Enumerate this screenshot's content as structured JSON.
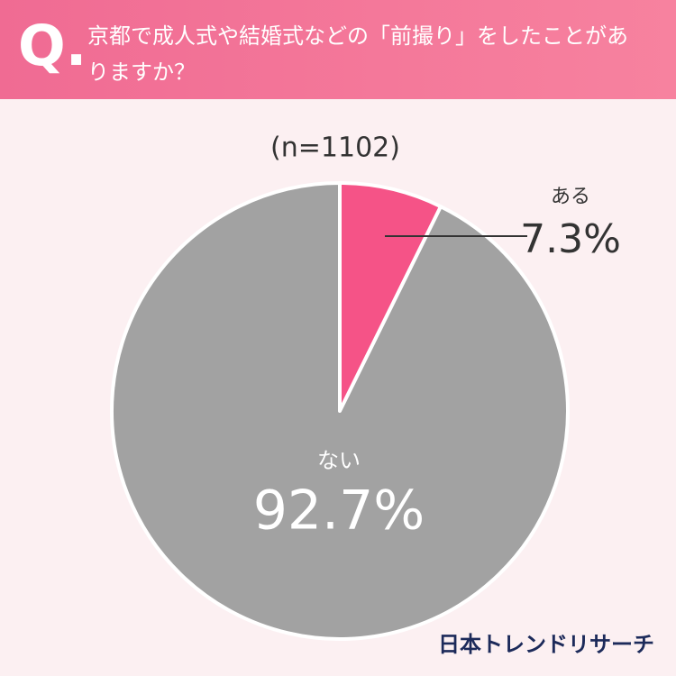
{
  "chart_data": {
    "type": "pie",
    "title": "京都で成人式や結婚式などの「前撮り」をしたことがありますか？",
    "subtitle": "(n=1102)",
    "source": "日本トレンドリサーチ",
    "categories": [
      "ある",
      "ない"
    ],
    "values": [
      7.3,
      92.7
    ],
    "value_labels": [
      "7.3%",
      "92.7%"
    ],
    "colors": [
      "#f55387",
      "#a2a2a2"
    ]
  }
}
